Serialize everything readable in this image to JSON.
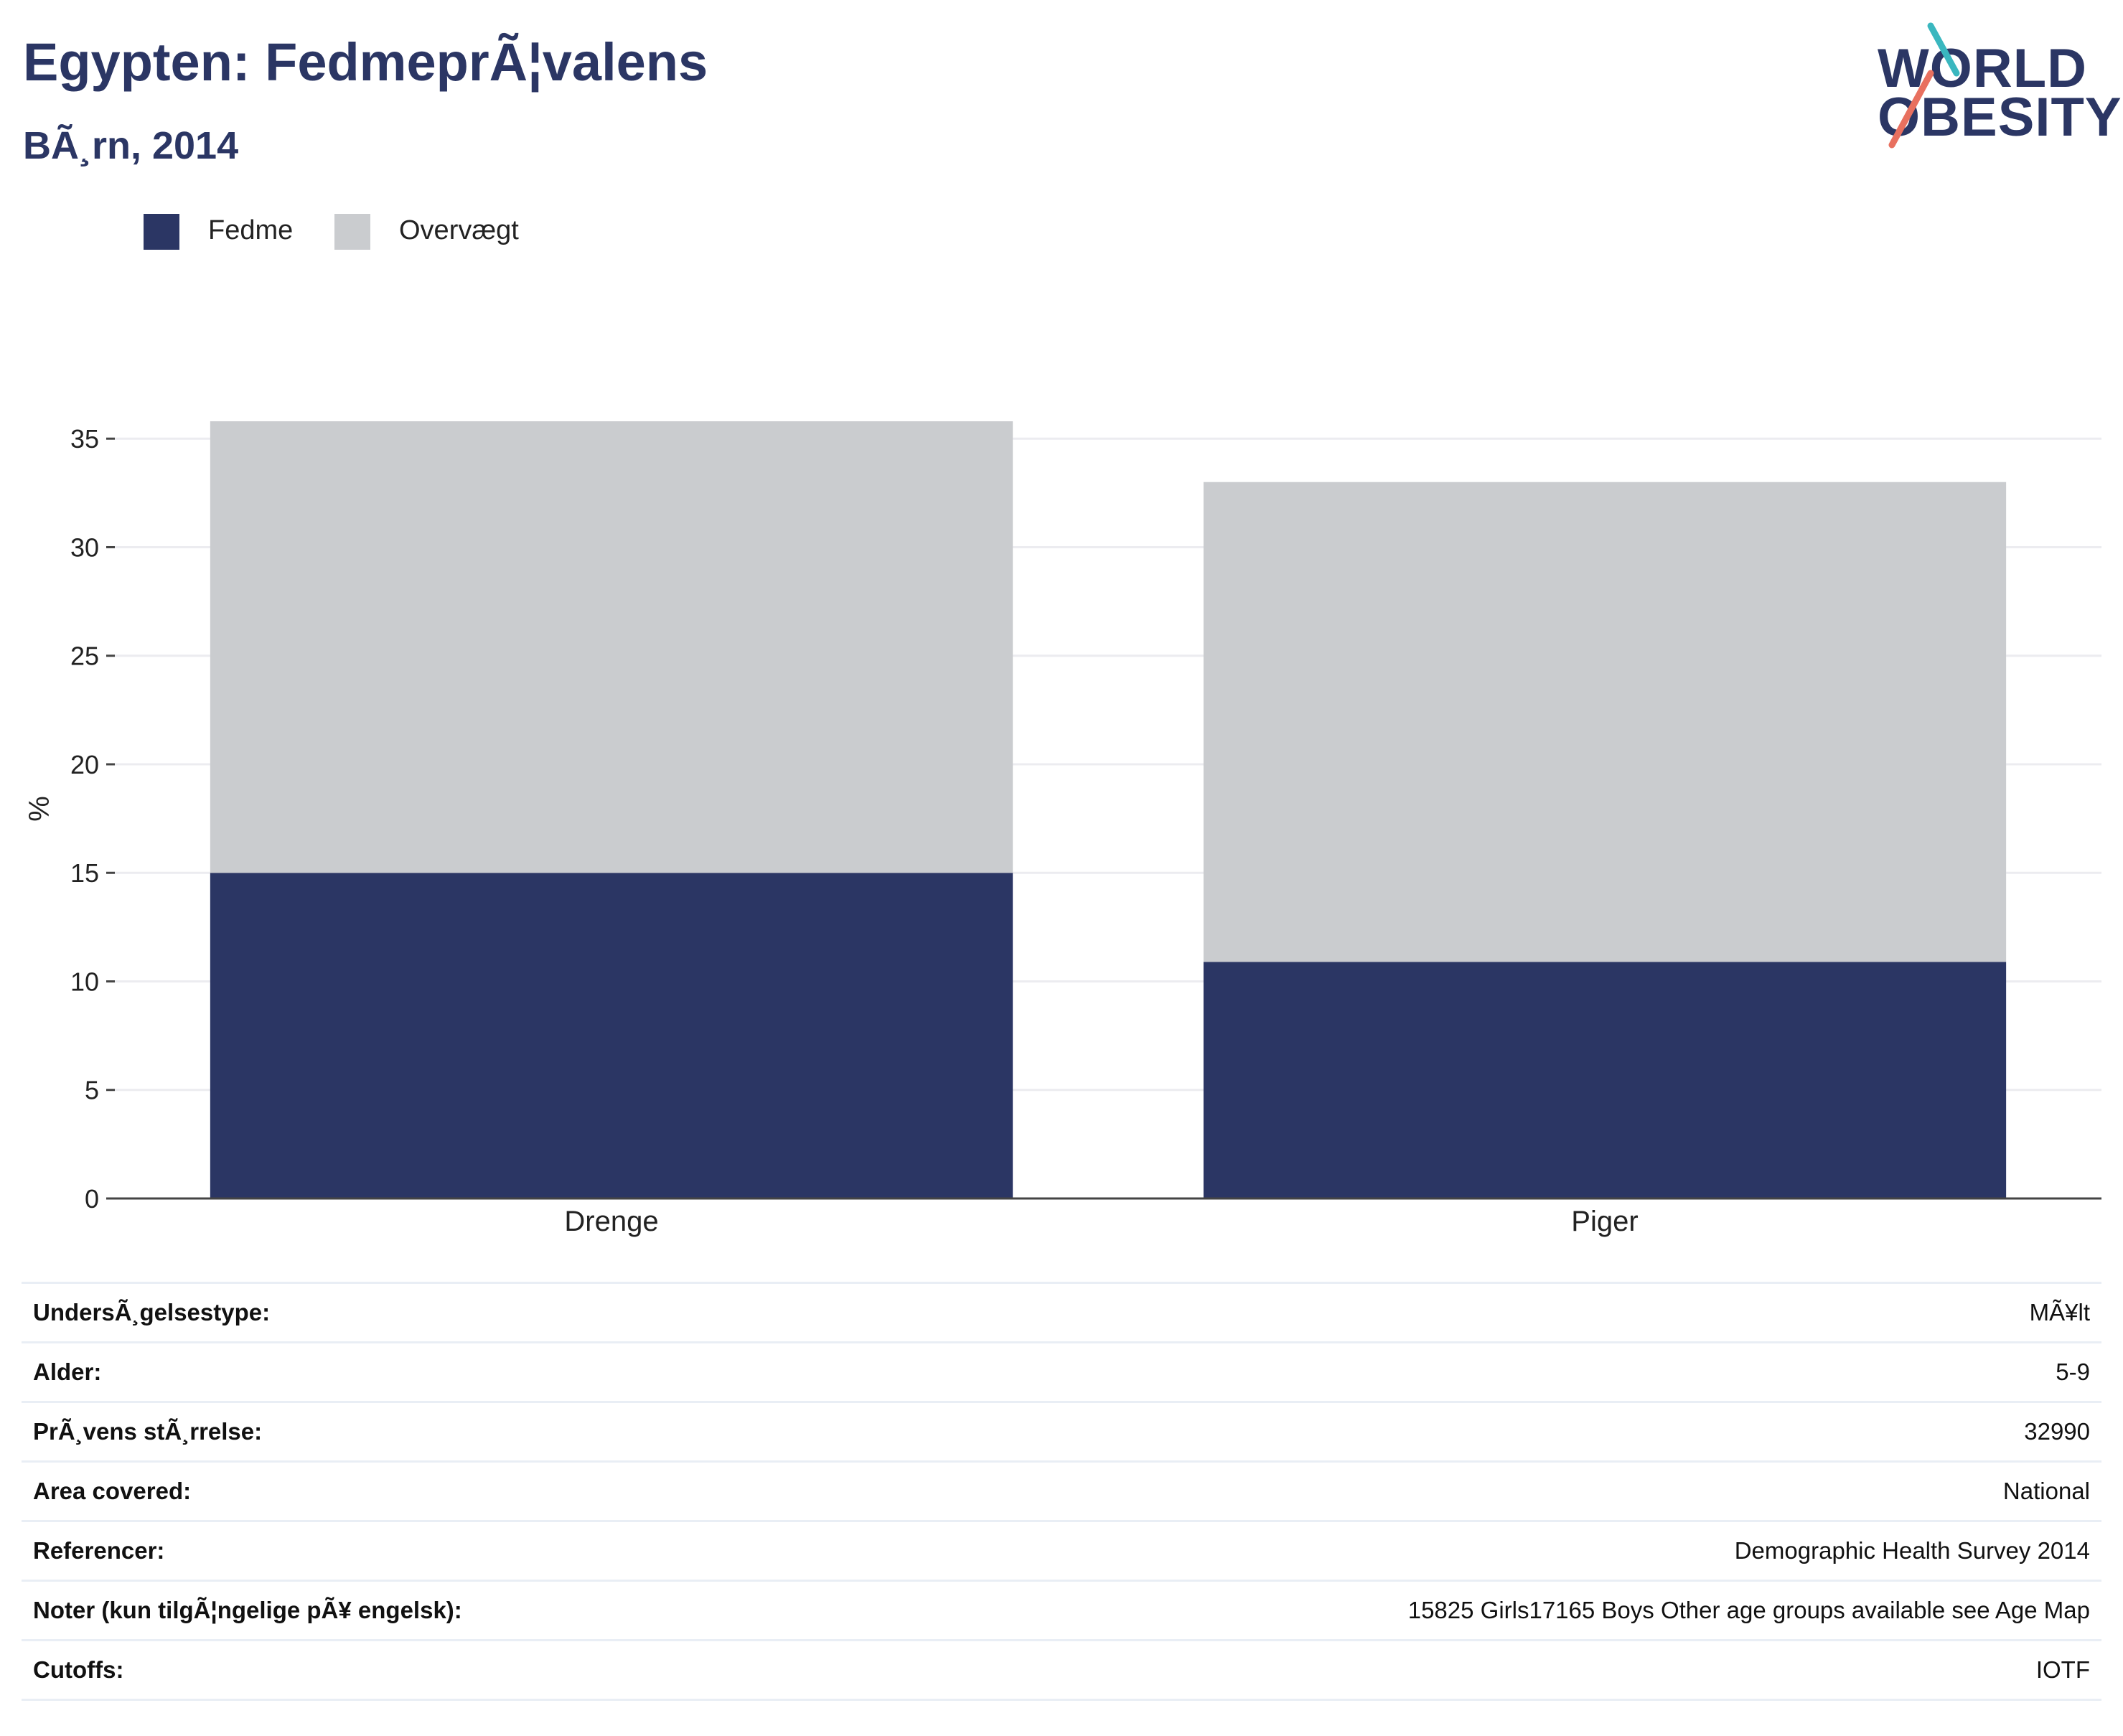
{
  "header": {
    "title": "Egypten: FedmeprÃ¦valens",
    "subtitle": "BÃ¸rn, 2014"
  },
  "logo": {
    "line1": "WORLD",
    "line2": "OBESITY",
    "text_color": "#2b3664",
    "accent_teal": "#3ab7bf",
    "accent_coral": "#e8705f"
  },
  "legend": {
    "items": [
      {
        "label": "Fedme",
        "color": "#2b3664"
      },
      {
        "label": "Overvægt",
        "color": "#cacccf"
      }
    ]
  },
  "chart_data": {
    "type": "bar",
    "stacked": true,
    "categories": [
      "Drenge",
      "Piger"
    ],
    "series": [
      {
        "name": "Fedme",
        "values": [
          15.0,
          10.9
        ],
        "color": "#2b3664"
      },
      {
        "name": "Overvægt",
        "values": [
          20.8,
          22.1
        ],
        "color": "#cacccf"
      }
    ],
    "ylabel": "%",
    "ylim": [
      0,
      35
    ],
    "yticks": [
      0,
      5,
      10,
      15,
      20,
      25,
      30,
      35
    ],
    "grid": true,
    "legend_position": "top-left"
  },
  "info": {
    "rows": [
      {
        "key": "UndersÃ¸gelsestype:",
        "value": "MÃ¥lt"
      },
      {
        "key": "Alder:",
        "value": "5-9"
      },
      {
        "key": "PrÃ¸vens stÃ¸rrelse:",
        "value": "32990"
      },
      {
        "key": "Area covered:",
        "value": "National"
      },
      {
        "key": "Referencer:",
        "value": "Demographic Health Survey 2014"
      },
      {
        "key": "Noter (kun tilgÃ¦ngelige pÃ¥ engelsk):",
        "value": "15825 Girls17165 Boys Other age groups available see Age Map"
      },
      {
        "key": "Cutoffs:",
        "value": "IOTF"
      }
    ]
  }
}
